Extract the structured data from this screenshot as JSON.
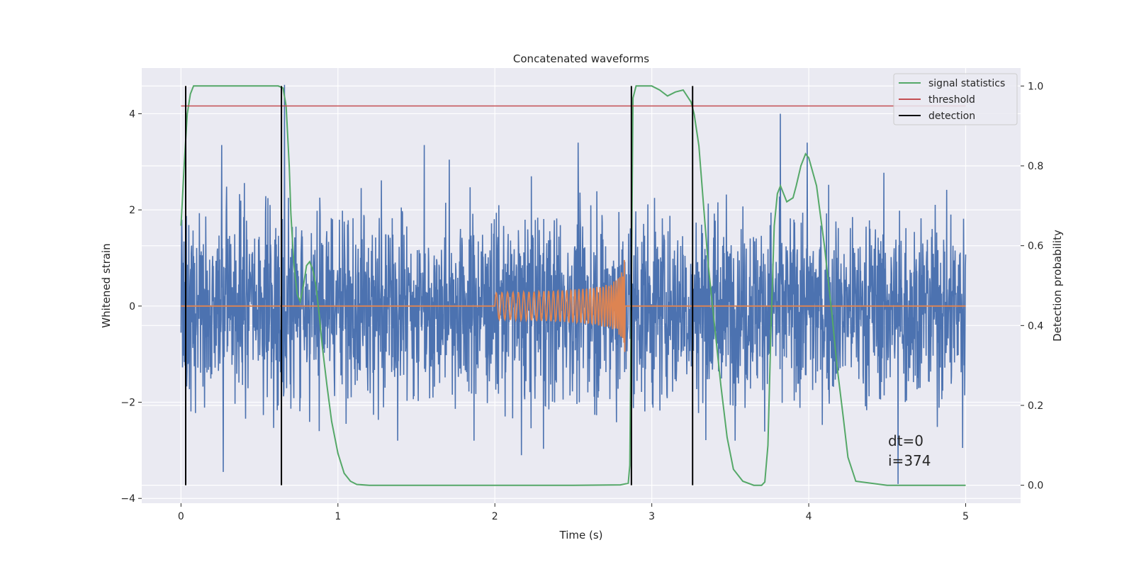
{
  "chart_data": {
    "type": "line",
    "title": "Concatenated waveforms",
    "xlabel": "Time (s)",
    "ylabel": "Whitened strain",
    "ylabel_right": "Detection probability",
    "xlim": [
      -0.25,
      5.35
    ],
    "ylim": [
      -4.1,
      4.95
    ],
    "ylim_right": [
      -0.045,
      1.045
    ],
    "xticks": [
      0,
      1,
      2,
      3,
      4,
      5
    ],
    "xtick_labels": [
      "0",
      "1",
      "2",
      "3",
      "4",
      "5"
    ],
    "yticks": [
      -4,
      -2,
      0,
      2,
      4
    ],
    "ytick_labels": [
      "−4",
      "−2",
      "0",
      "2",
      "4"
    ],
    "yticks_right": [
      0.0,
      0.2,
      0.4,
      0.6,
      0.8,
      1.0
    ],
    "ytick_labels_right": [
      "0.0",
      "0.2",
      "0.4",
      "0.6",
      "0.8",
      "1.0"
    ],
    "grid": true,
    "legend_position": "top-right",
    "colors": {
      "strain": "#4c72b0",
      "template": "#dd8452",
      "signal_statistics": "#55a868",
      "threshold": "#c44e52",
      "detection": "#000000",
      "plot_background": "#eaeaf2",
      "grid": "#ffffff"
    },
    "legend": [
      {
        "label": "signal statistics",
        "color": "#55a868"
      },
      {
        "label": "threshold",
        "color": "#c44e52"
      },
      {
        "label": "detection",
        "color": "#000000"
      }
    ],
    "strain_noise": {
      "x_start": 0.0,
      "x_end": 5.0,
      "typical_range": [
        -2.8,
        3.3
      ],
      "outliers": [
        [
          0.26,
          3.35
        ],
        [
          0.27,
          -3.45
        ],
        [
          0.66,
          4.6
        ],
        [
          0.88,
          -2.6
        ],
        [
          1.55,
          3.35
        ],
        [
          2.53,
          3.4
        ],
        [
          3.82,
          4.0
        ],
        [
          3.99,
          3.4
        ],
        [
          4.57,
          -3.7
        ],
        [
          2.17,
          -3.1
        ],
        [
          2.31,
          -2.97
        ],
        [
          4.98,
          -2.95
        ]
      ]
    },
    "series": [
      {
        "name": "signal statistics",
        "axis": "right",
        "x": [
          0.0,
          0.02,
          0.04,
          0.06,
          0.08,
          0.1,
          0.15,
          0.3,
          0.5,
          0.62,
          0.65,
          0.67,
          0.69,
          0.7,
          0.72,
          0.74,
          0.76,
          0.78,
          0.8,
          0.82,
          0.84,
          0.86,
          0.88,
          0.9,
          0.93,
          0.96,
          1.0,
          1.04,
          1.08,
          1.12,
          1.2,
          1.5,
          2.0,
          2.5,
          2.8,
          2.85,
          2.86,
          2.87,
          2.88,
          2.9,
          2.95,
          3.0,
          3.05,
          3.1,
          3.15,
          3.2,
          3.25,
          3.27,
          3.3,
          3.33,
          3.36,
          3.4,
          3.44,
          3.48,
          3.52,
          3.58,
          3.65,
          3.7,
          3.72,
          3.74,
          3.76,
          3.78,
          3.8,
          3.82,
          3.86,
          3.9,
          3.92,
          3.95,
          3.98,
          4.0,
          4.05,
          4.1,
          4.15,
          4.18,
          4.22,
          4.25,
          4.3,
          4.5,
          5.0
        ],
        "values": [
          0.65,
          0.8,
          0.93,
          0.98,
          1.0,
          1.0,
          1.0,
          1.0,
          1.0,
          1.0,
          0.995,
          0.95,
          0.8,
          0.68,
          0.55,
          0.48,
          0.46,
          0.5,
          0.55,
          0.56,
          0.54,
          0.5,
          0.43,
          0.35,
          0.25,
          0.16,
          0.08,
          0.03,
          0.01,
          0.002,
          0.0,
          0.0,
          0.0,
          0.0,
          0.001,
          0.005,
          0.05,
          0.5,
          0.97,
          1.0,
          1.0,
          1.0,
          0.99,
          0.975,
          0.985,
          0.99,
          0.96,
          0.93,
          0.85,
          0.7,
          0.55,
          0.4,
          0.25,
          0.12,
          0.04,
          0.01,
          0.0,
          0.0,
          0.008,
          0.1,
          0.4,
          0.65,
          0.73,
          0.75,
          0.71,
          0.72,
          0.75,
          0.8,
          0.83,
          0.82,
          0.75,
          0.6,
          0.42,
          0.3,
          0.17,
          0.07,
          0.01,
          0.0,
          0.0
        ]
      },
      {
        "name": "threshold",
        "axis": "right",
        "x": [
          0.0,
          5.0
        ],
        "values": [
          0.95,
          0.95
        ]
      }
    ],
    "detections": [
      0.03,
      0.64,
      2.87,
      3.26
    ],
    "template_chirp": {
      "t_start": 2.0,
      "t_merge": 2.83,
      "amplitude_start": 0.1,
      "amplitude_peak": 1.25
    },
    "annotations": [
      "dt=0",
      "i=374"
    ]
  }
}
